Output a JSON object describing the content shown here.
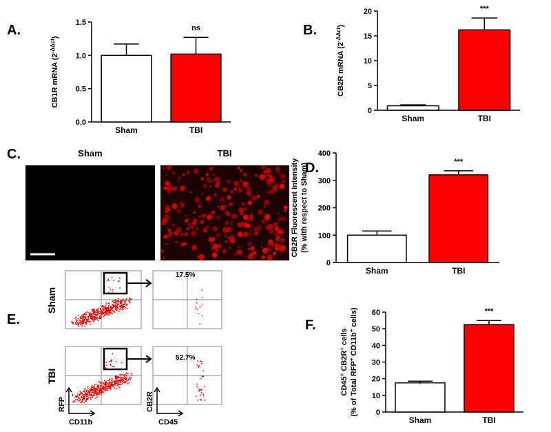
{
  "chart_data": [
    {
      "type": "bar",
      "panel": "A.",
      "ylabel": [
        [
          "CB1R mRNA (2",
          "-ΔΔct",
          ")"
        ]
      ],
      "categories": [
        "Sham",
        "TBI"
      ],
      "values": [
        1.0,
        1.02
      ],
      "errors": [
        0.17,
        0.25
      ],
      "colors": [
        "#ffffff",
        "#ff0000"
      ],
      "annotations": [
        null,
        "ns"
      ],
      "ylim": [
        0,
        1.5
      ],
      "yticks": [
        {
          "value": 0,
          "label": "0.0"
        },
        {
          "value": 0.5,
          "label": "0.5"
        },
        {
          "value": 1,
          "label": "1.0"
        },
        {
          "value": 1.5,
          "label": "1.5"
        }
      ]
    },
    {
      "type": "bar",
      "panel": "B.",
      "ylabel": [
        [
          "CB2R mRNA (2",
          "-ΔΔct",
          ")"
        ]
      ],
      "categories": [
        "Sham",
        "TBI"
      ],
      "values": [
        0.9,
        16.2
      ],
      "errors": [
        0.2,
        2.4
      ],
      "colors": [
        "#ffffff",
        "#ff0000"
      ],
      "annotations": [
        null,
        "***"
      ],
      "ylim": [
        0,
        20
      ],
      "yticks": [
        0,
        5,
        10,
        15,
        20
      ]
    },
    {
      "type": "bar",
      "panel": "D.",
      "ylabel": [
        [
          "CB2R Fluorescent Intensity"
        ],
        [
          "(% with respect to Sham)"
        ]
      ],
      "categories": [
        "Sham",
        "TBI"
      ],
      "values": [
        100,
        320
      ],
      "errors": [
        15,
        15
      ],
      "colors": [
        "#ffffff",
        "#ff0000"
      ],
      "annotations": [
        null,
        "***"
      ],
      "ylim": [
        0,
        400
      ],
      "yticks": [
        0,
        100,
        200,
        300,
        400
      ]
    },
    {
      "type": "bar",
      "panel": "F.",
      "ylabel": [
        [
          "CD45",
          "+",
          " CB2R",
          "+",
          " cells"
        ],
        [
          "(% of Total RFP",
          "+",
          " CD11b",
          "+",
          " cells)"
        ]
      ],
      "categories": [
        "Sham",
        "TBI"
      ],
      "values": [
        17.5,
        52.5
      ],
      "errors": [
        1,
        2.5
      ],
      "colors": [
        "#ffffff",
        "#ff0000"
      ],
      "annotations": [
        null,
        "***"
      ],
      "ylim": [
        0,
        60
      ],
      "yticks": [
        0,
        10,
        20,
        30,
        40,
        50,
        60
      ]
    }
  ],
  "image_panel": {
    "label": "C.",
    "titles": [
      "Sham",
      "TBI"
    ]
  },
  "flow_panel": {
    "label": "E.",
    "rows": [
      "Sham",
      "TBI"
    ],
    "percents": [
      "17.5%",
      "52.7%"
    ],
    "axes": [
      "RFP",
      "CD11b",
      "CB2R",
      "CD45"
    ]
  }
}
